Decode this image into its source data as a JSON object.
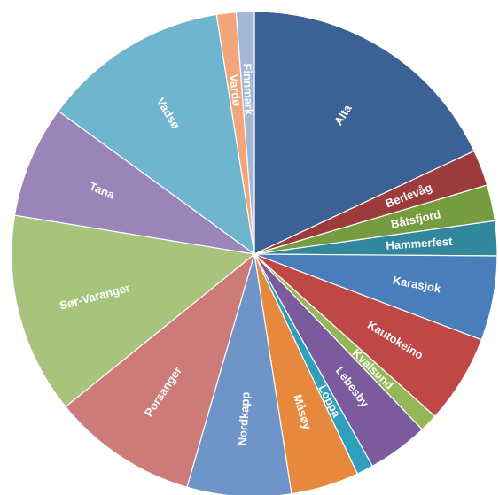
{
  "chart_data": {
    "type": "pie",
    "title": "",
    "start_angle_deg": 0,
    "direction": "clockwise",
    "slices": [
      {
        "label": "Alta",
        "value": 19.5,
        "color": "#3c6195"
      },
      {
        "label": "Berlevåg",
        "value": 2.6,
        "color": "#9b3b3b"
      },
      {
        "label": "Båtsfjord",
        "value": 2.6,
        "color": "#779b3f"
      },
      {
        "label": "Hammerfest",
        "value": 2.5,
        "color": "#31889d"
      },
      {
        "label": "Karasjok",
        "value": 6.1,
        "color": "#4a7ebb"
      },
      {
        "label": "Kautokeino",
        "value": 6.4,
        "color": "#bf4846"
      },
      {
        "label": "Kvalsund",
        "value": 1.3,
        "color": "#94b857"
      },
      {
        "label": "Lebesby",
        "value": 4.4,
        "color": "#7b5b9e"
      },
      {
        "label": "Loppa",
        "value": 1.2,
        "color": "#2e9fbd"
      },
      {
        "label": "Måsøy",
        "value": 4.9,
        "color": "#e6893e"
      },
      {
        "label": "Nordkapp",
        "value": 7.5,
        "color": "#6f94c8"
      },
      {
        "label": "Porsanger",
        "value": 10.5,
        "color": "#cd7b79"
      },
      {
        "label": "Sør-Varanger",
        "value": 14.5,
        "color": "#a8c47c"
      },
      {
        "label": "Tana",
        "value": 8.1,
        "color": "#9985b7"
      },
      {
        "label": "Vadsø",
        "value": 13.5,
        "color": "#6fb5cd"
      },
      {
        "label": "Vardø",
        "value": 1.4,
        "color": "#f2a679"
      },
      {
        "label": "Finnmark",
        "value": 1.3,
        "color": "#a5b7d6"
      }
    ]
  }
}
